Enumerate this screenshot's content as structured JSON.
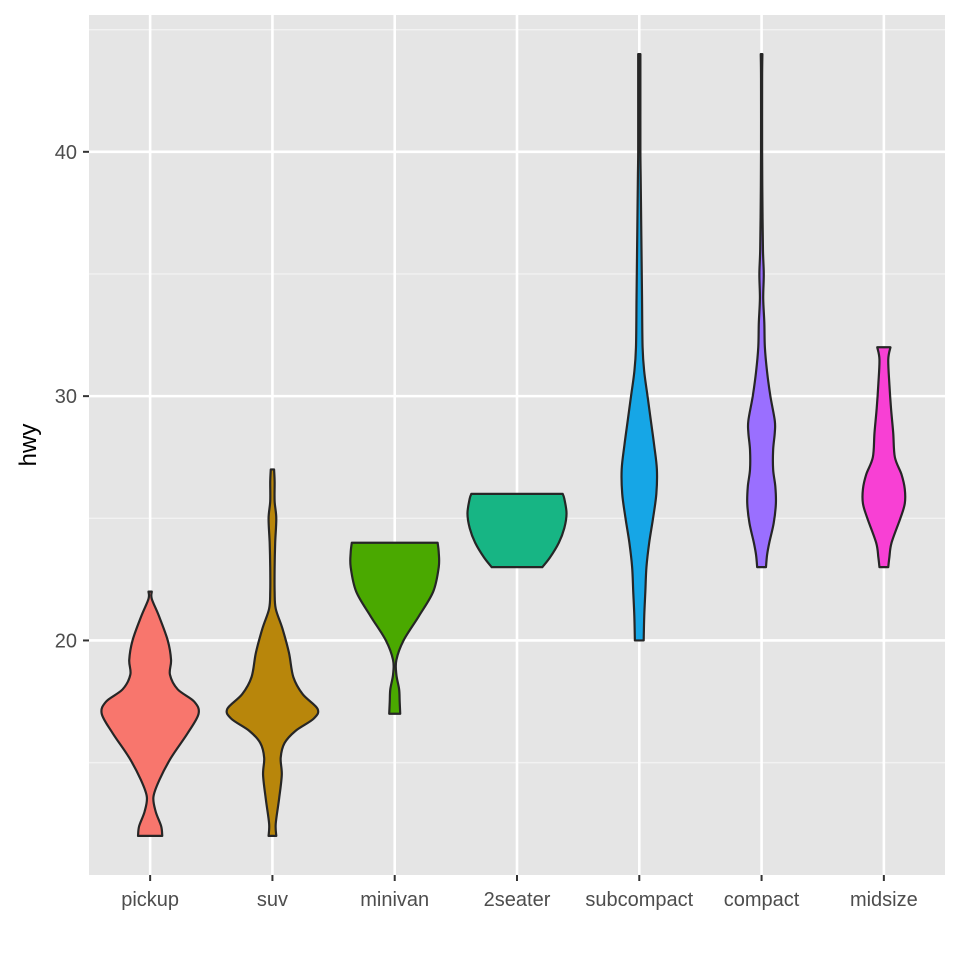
{
  "chart_data": {
    "type": "violin",
    "xlabel": "",
    "ylabel": "hwy",
    "ylim": [
      10.4,
      45.6
    ],
    "y_ticks": [
      20,
      30,
      40
    ],
    "grid": true,
    "panel_background": "#e5e5e5",
    "categories": [
      "pickup",
      "suv",
      "minivan",
      "2seater",
      "subcompact",
      "compact",
      "midsize"
    ],
    "violins": [
      {
        "category": "pickup",
        "color": "#f8766d",
        "min": 12,
        "max": 22,
        "profile": [
          [
            12,
            0.22
          ],
          [
            12.4,
            0.2
          ],
          [
            13,
            0.1
          ],
          [
            13.6,
            0.06
          ],
          [
            14.3,
            0.17
          ],
          [
            15.2,
            0.38
          ],
          [
            16.2,
            0.68
          ],
          [
            17,
            0.88
          ],
          [
            17.5,
            0.8
          ],
          [
            18,
            0.5
          ],
          [
            18.6,
            0.36
          ],
          [
            19.2,
            0.38
          ],
          [
            20,
            0.32
          ],
          [
            21,
            0.16
          ],
          [
            21.7,
            0.03
          ],
          [
            22,
            0.03
          ]
        ]
      },
      {
        "category": "suv",
        "color": "#b8860b",
        "min": 12,
        "max": 27,
        "profile": [
          [
            12,
            0.07
          ],
          [
            12.5,
            0.06
          ],
          [
            13.5,
            0.12
          ],
          [
            14.5,
            0.17
          ],
          [
            15.2,
            0.15
          ],
          [
            15.8,
            0.22
          ],
          [
            16.3,
            0.42
          ],
          [
            16.8,
            0.75
          ],
          [
            17.2,
            0.82
          ],
          [
            17.8,
            0.55
          ],
          [
            18.5,
            0.38
          ],
          [
            19.5,
            0.3
          ],
          [
            20.5,
            0.18
          ],
          [
            21.3,
            0.06
          ],
          [
            22,
            0.04
          ],
          [
            23,
            0.04
          ],
          [
            24,
            0.05
          ],
          [
            25,
            0.07
          ],
          [
            25.7,
            0.04
          ],
          [
            26.5,
            0.04
          ],
          [
            27,
            0.03
          ]
        ]
      },
      {
        "category": "minivan",
        "color": "#4aa900",
        "min": 17,
        "max": 24,
        "profile": [
          [
            17,
            0.1
          ],
          [
            17.5,
            0.09
          ],
          [
            18,
            0.08
          ],
          [
            18.6,
            0.03
          ],
          [
            19.2,
            0.03
          ],
          [
            20,
            0.16
          ],
          [
            21,
            0.44
          ],
          [
            22,
            0.7
          ],
          [
            23,
            0.8
          ],
          [
            23.6,
            0.8
          ],
          [
            24,
            0.78
          ]
        ]
      },
      {
        "category": "2seater",
        "color": "#17b584",
        "min": 23,
        "max": 26,
        "profile": [
          [
            23,
            0.46
          ],
          [
            23.4,
            0.6
          ],
          [
            24,
            0.76
          ],
          [
            24.6,
            0.86
          ],
          [
            25.2,
            0.9
          ],
          [
            25.8,
            0.86
          ],
          [
            26,
            0.83
          ]
        ]
      },
      {
        "category": "subcompact",
        "color": "#16a6e6",
        "min": 20,
        "max": 44,
        "profile": [
          [
            20,
            0.08
          ],
          [
            21,
            0.09
          ],
          [
            22,
            0.11
          ],
          [
            23,
            0.13
          ],
          [
            24,
            0.18
          ],
          [
            25,
            0.25
          ],
          [
            26,
            0.31
          ],
          [
            27,
            0.32
          ],
          [
            28,
            0.27
          ],
          [
            29,
            0.21
          ],
          [
            30,
            0.15
          ],
          [
            31,
            0.09
          ],
          [
            32,
            0.06
          ],
          [
            34,
            0.05
          ],
          [
            36,
            0.04
          ],
          [
            38,
            0.03
          ],
          [
            39,
            0.025
          ],
          [
            40,
            0.02
          ],
          [
            42,
            0.02
          ],
          [
            44,
            0.02
          ]
        ]
      },
      {
        "category": "compact",
        "color": "#9a6fff",
        "min": 23,
        "max": 44,
        "profile": [
          [
            23,
            0.08
          ],
          [
            23.5,
            0.1
          ],
          [
            24,
            0.14
          ],
          [
            24.8,
            0.22
          ],
          [
            25.6,
            0.26
          ],
          [
            26.3,
            0.25
          ],
          [
            27,
            0.21
          ],
          [
            27.8,
            0.21
          ],
          [
            28.5,
            0.24
          ],
          [
            29,
            0.24
          ],
          [
            30,
            0.16
          ],
          [
            31,
            0.1
          ],
          [
            32,
            0.06
          ],
          [
            33,
            0.05
          ],
          [
            34,
            0.03
          ],
          [
            35,
            0.04
          ],
          [
            36,
            0.025
          ],
          [
            38,
            0.015
          ],
          [
            40,
            0.01
          ],
          [
            43,
            0.01
          ],
          [
            44,
            0.015
          ]
        ]
      },
      {
        "category": "midsize",
        "color": "#f840d4",
        "min": 23,
        "max": 32,
        "profile": [
          [
            23,
            0.08
          ],
          [
            23.4,
            0.1
          ],
          [
            24,
            0.14
          ],
          [
            25,
            0.3
          ],
          [
            25.6,
            0.38
          ],
          [
            26.2,
            0.38
          ],
          [
            26.8,
            0.32
          ],
          [
            27.5,
            0.2
          ],
          [
            28.5,
            0.17
          ],
          [
            29.5,
            0.13
          ],
          [
            30.5,
            0.1
          ],
          [
            31.5,
            0.08
          ],
          [
            32,
            0.12
          ]
        ]
      }
    ]
  }
}
